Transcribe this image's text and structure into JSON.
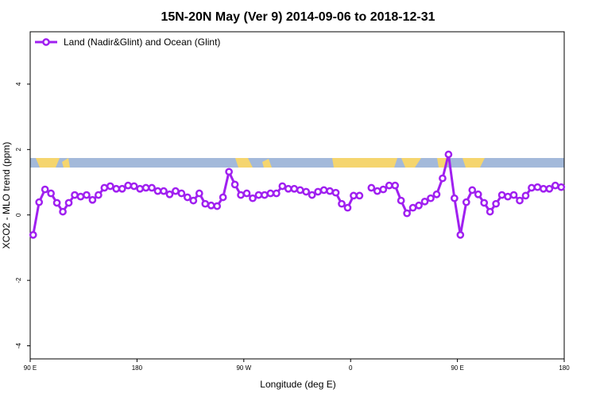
{
  "chart_data": {
    "type": "line",
    "title": "15N-20N May (Ver 9)   2014-09-06 to 2018-12-31",
    "x_label": "Longitude (deg E)",
    "y_label": "XCO2 - MLO trend (ppm)",
    "xlim": [
      90,
      540
    ],
    "ylim": [
      -4.4,
      5.6
    ],
    "xticks": [
      {
        "value": 90,
        "label": "90 E"
      },
      180,
      {
        "value": 270,
        "label": "90 W"
      },
      {
        "value": 360,
        "label": "0"
      },
      {
        "value": 450,
        "label": "90 E"
      },
      {
        "value": 540,
        "label": "180"
      }
    ],
    "yticks": [
      -4,
      -2,
      0,
      2,
      4
    ],
    "legend_position": "top-left",
    "x": [
      92.5,
      97.5,
      102.5,
      107.5,
      112.5,
      117.5,
      122.5,
      127.5,
      132.5,
      137.5,
      142.5,
      147.5,
      152.5,
      157.5,
      162.5,
      167.5,
      172.5,
      177.5,
      182.5,
      187.5,
      192.5,
      197.5,
      202.5,
      207.5,
      212.5,
      217.5,
      222.5,
      227.5,
      232.5,
      237.5,
      242.5,
      247.5,
      252.5,
      257.5,
      262.5,
      267.5,
      272.5,
      277.5,
      282.5,
      287.5,
      292.5,
      297.5,
      302.5,
      307.5,
      312.5,
      317.5,
      322.5,
      327.5,
      332.5,
      337.5,
      342.5,
      347.5,
      352.5,
      357.5,
      362.5,
      367.5,
      372.5,
      377.5,
      382.5,
      387.5,
      392.5,
      397.5,
      402.5,
      407.5,
      412.5,
      417.5,
      422.5,
      427.5,
      432.5,
      437.5,
      442.5,
      447.5,
      452.5,
      457.5,
      462.5,
      467.5,
      472.5,
      477.5,
      482.5,
      487.5,
      492.5,
      497.5,
      502.5,
      507.5,
      512.5,
      517.5,
      522.5,
      527.5,
      532.5,
      537.5
    ],
    "series": [
      {
        "name": "Land (Nadir&Glint) and Ocean (Glint)",
        "color": "#a020f0",
        "values": [
          -0.61,
          0.39,
          0.78,
          0.66,
          0.37,
          0.1,
          0.37,
          0.61,
          0.56,
          0.61,
          0.46,
          0.61,
          0.83,
          0.88,
          0.8,
          0.8,
          0.9,
          0.88,
          0.8,
          0.83,
          0.83,
          0.73,
          0.73,
          0.63,
          0.73,
          0.66,
          0.54,
          0.44,
          0.66,
          0.34,
          0.29,
          0.27,
          0.54,
          1.32,
          0.93,
          0.61,
          0.66,
          0.51,
          0.61,
          0.61,
          0.66,
          0.66,
          0.88,
          0.8,
          0.8,
          0.76,
          0.71,
          0.61,
          0.71,
          0.76,
          0.73,
          0.68,
          0.34,
          0.22,
          0.59,
          0.59,
          null,
          0.83,
          0.73,
          0.78,
          0.9,
          0.9,
          0.44,
          0.05,
          0.22,
          0.29,
          0.41,
          0.51,
          0.63,
          1.12,
          1.85,
          0.51,
          -0.61,
          0.39,
          0.76,
          0.63,
          0.37,
          0.1,
          0.34,
          0.61,
          0.56,
          0.61,
          0.44,
          0.59,
          0.83,
          0.85,
          0.8,
          0.8,
          0.9,
          0.85
        ]
      }
    ]
  }
}
